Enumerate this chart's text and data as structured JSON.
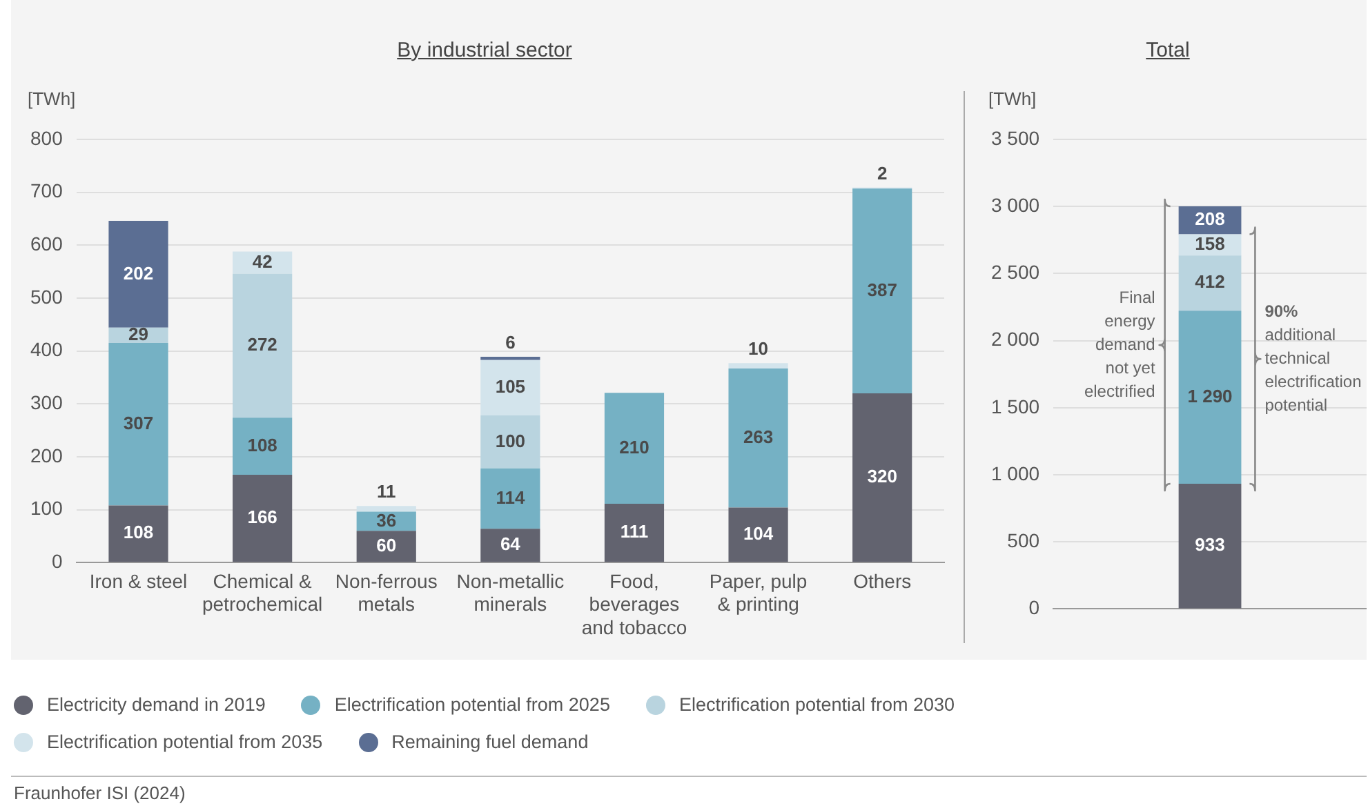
{
  "chart_data": [
    {
      "type": "bar",
      "title": "By industrial sector",
      "ylabel": "[TWh]",
      "stacked": true,
      "data_labels": true,
      "grid": "y",
      "legend": "bottom",
      "categories": [
        "Iron & steel",
        "Chemical & petrochemical",
        "Non-ferrous metals",
        "Non-metallic minerals",
        "Food, beverages and tobacco",
        "Paper, pulp & printing",
        "Others"
      ],
      "ylim": [
        0,
        800
      ],
      "yticks": [
        0,
        100,
        200,
        300,
        400,
        500,
        600,
        700,
        800
      ],
      "series": [
        {
          "name": "Electricity demand in 2019",
          "color": "#62636f",
          "values": [
            108,
            166,
            60,
            64,
            111,
            104,
            320
          ]
        },
        {
          "name": "Electrification potential from 2025",
          "color": "#75b1c4",
          "values": [
            307,
            108,
            36,
            114,
            210,
            263,
            387
          ]
        },
        {
          "name": "Electrification potential from 2030",
          "color": "#b9d4df",
          "values": [
            29,
            272,
            null,
            100,
            null,
            null,
            null
          ]
        },
        {
          "name": "Electrification potential from 2035",
          "color": "#d3e4ec",
          "values": [
            null,
            42,
            11,
            105,
            null,
            10,
            2
          ]
        },
        {
          "name": "Remaining fuel demand",
          "color": "#5b6e93",
          "values": [
            202,
            null,
            null,
            6,
            null,
            null,
            null
          ]
        }
      ],
      "annotations": [
        "Fraunhofer ISI (2024)"
      ]
    },
    {
      "type": "bar",
      "title": "Total",
      "ylabel": "[TWh]",
      "stacked": true,
      "grid": "y",
      "categories": [
        null
      ],
      "ylim": [
        0,
        3500
      ],
      "yticks": [
        0,
        500,
        {
          "value": 1000,
          "label": "1 000"
        },
        {
          "value": 1500,
          "label": "1 500"
        },
        {
          "value": 2000,
          "label": "2 000"
        },
        {
          "value": 2500,
          "label": "2 500"
        },
        {
          "value": 3000,
          "label": "3 000"
        },
        {
          "value": 3500,
          "label": "3 500"
        }
      ],
      "series": [
        {
          "color": "#62636f",
          "values": [
            933
          ],
          "value_labels": [
            "933"
          ]
        },
        {
          "color": "#75b1c4",
          "values": [
            1290
          ],
          "value_labels": [
            "1 290"
          ]
        },
        {
          "color": "#b9d4df",
          "values": [
            412
          ],
          "value_labels": [
            "412"
          ]
        },
        {
          "color": "#d3e4ec",
          "values": [
            158
          ],
          "value_labels": [
            "158"
          ]
        },
        {
          "color": "#5b6e93",
          "values": [
            208
          ],
          "value_labels": [
            "208"
          ]
        }
      ],
      "annotations": [
        "Final energy demand not yet electrified",
        "90% additional technical electrification potential"
      ]
    }
  ]
}
